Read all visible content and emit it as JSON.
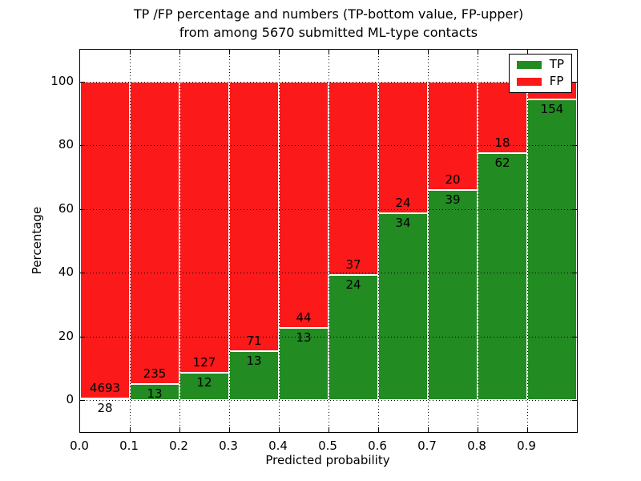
{
  "chart_data": {
    "type": "bar",
    "stacked": true,
    "normalized": "percent",
    "title": "TP /FP percentage and numbers (TP-bottom value, FP-upper)\nfrom among 5670 submitted ML-type contacts",
    "title_lines": [
      "TP /FP percentage and numbers (TP-bottom value, FP-upper)",
      "from among 5670 submitted ML-type contacts"
    ],
    "total_contacts": 5670,
    "xlabel": "Predicted probability",
    "ylabel": "Percentage",
    "xlim": [
      0.0,
      1.0
    ],
    "ylim": [
      -10,
      110
    ],
    "bin_width": 0.1,
    "bins_start": [
      0.0,
      0.1,
      0.2,
      0.3,
      0.4,
      0.5,
      0.6,
      0.7,
      0.8,
      0.9
    ],
    "xticks": [
      "0.0",
      "0.1",
      "0.2",
      "0.3",
      "0.4",
      "0.5",
      "0.6",
      "0.7",
      "0.8",
      "0.9"
    ],
    "yticks": [
      0,
      20,
      40,
      60,
      80,
      100
    ],
    "grid": "dotted",
    "series": [
      {
        "name": "TP",
        "color": "#228b22",
        "counts": [
          28,
          13,
          12,
          13,
          13,
          24,
          34,
          39,
          62,
          154
        ],
        "labels": [
          "28",
          "13",
          "12",
          "13",
          "13",
          "24",
          "34",
          "39",
          "62",
          "154"
        ],
        "percent": [
          0.6,
          5.2,
          8.6,
          15.5,
          22.8,
          39.3,
          58.6,
          66.1,
          77.5,
          94.5
        ]
      },
      {
        "name": "FP",
        "color": "#fb1919",
        "labels": [
          "4693",
          "235",
          "127",
          "71",
          "44",
          "37",
          "24",
          "20",
          "18",
          ""
        ],
        "percent": [
          99.4,
          94.8,
          91.4,
          84.5,
          77.2,
          60.7,
          41.4,
          33.9,
          22.5,
          5.5
        ]
      }
    ],
    "legend": {
      "position": "upper right",
      "entries": [
        {
          "label": "TP",
          "color": "#228b22"
        },
        {
          "label": "FP",
          "color": "#fb1919"
        }
      ]
    }
  }
}
